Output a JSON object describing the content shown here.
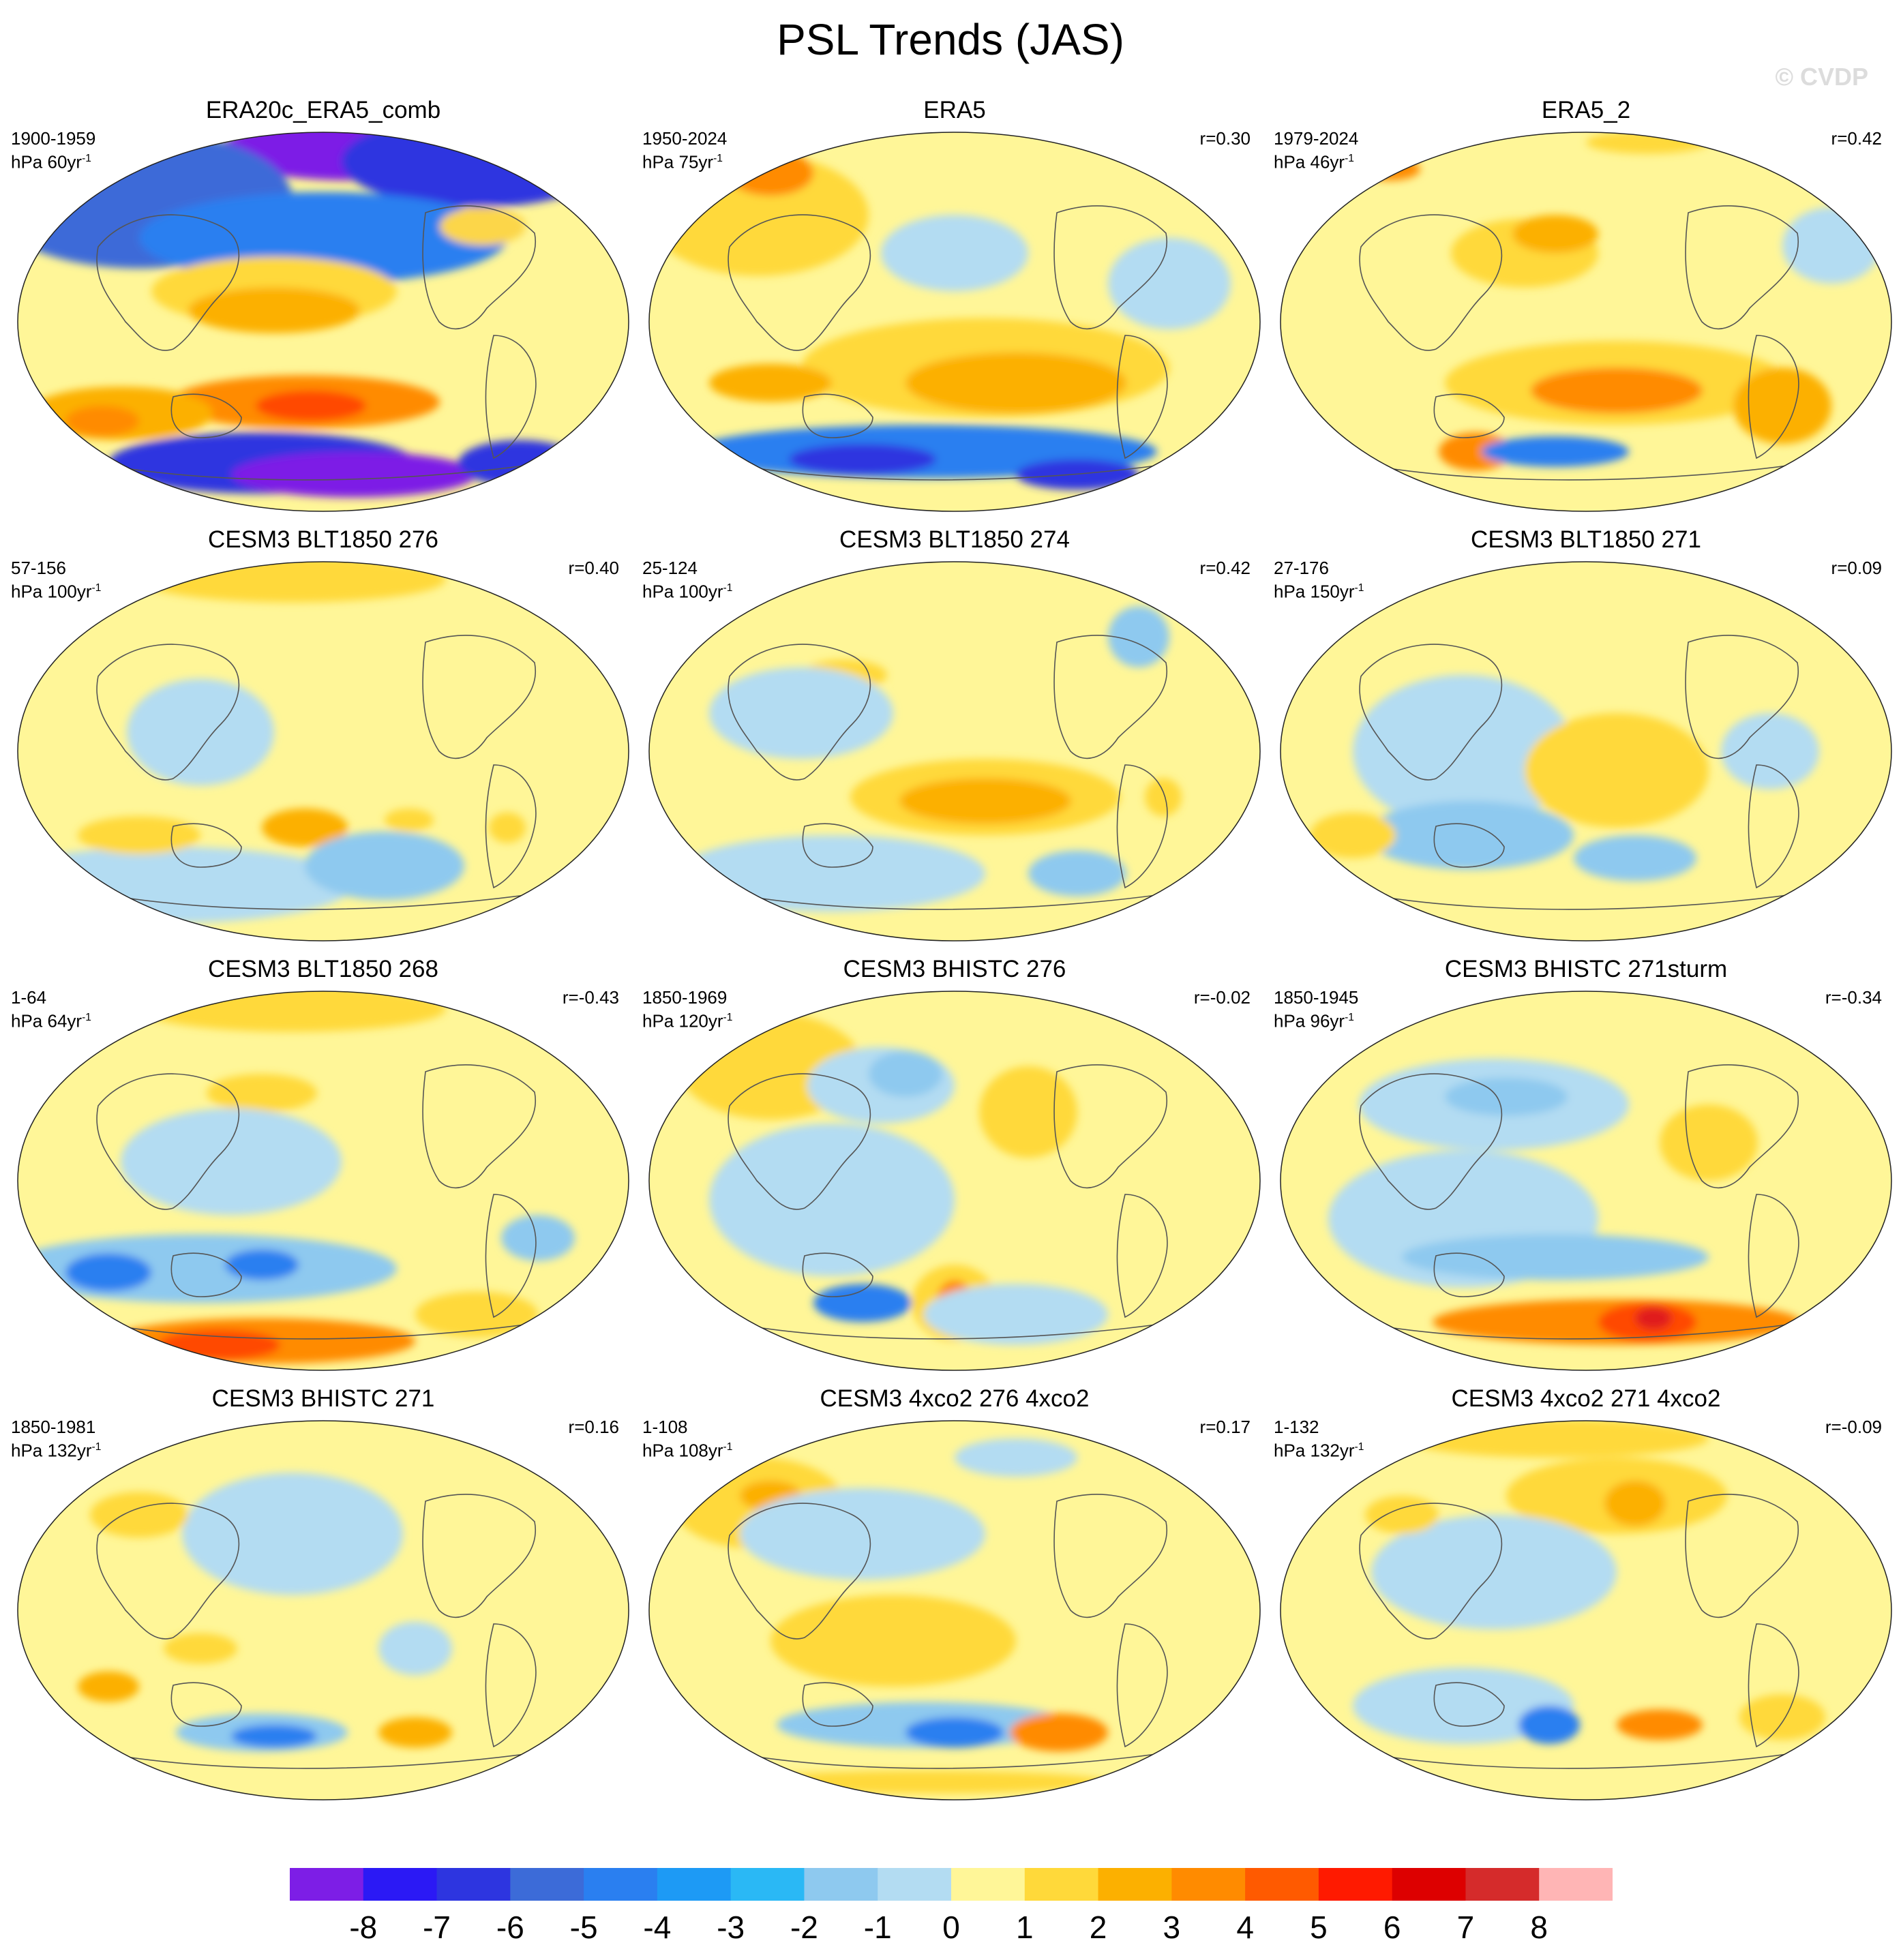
{
  "title": "PSL Trends (JAS)",
  "watermark": "© CVDP",
  "panels": [
    {
      "title": "ERA20c_ERA5_comb",
      "period": "1900-1959",
      "units": "hPa 60yr",
      "r": "",
      "blobs": [
        [
          "#7d1ee6",
          0.55,
          0.05,
          0.22,
          0.08
        ],
        [
          "#2d35e0",
          0.75,
          0.08,
          0.22,
          0.12
        ],
        [
          "#3c6bd8",
          0.2,
          0.18,
          0.25,
          0.18
        ],
        [
          "#2a7ff0",
          0.5,
          0.28,
          0.3,
          0.12
        ],
        [
          "#ffd93a",
          0.42,
          0.42,
          0.2,
          0.09
        ],
        [
          "#fcb000",
          0.42,
          0.47,
          0.14,
          0.06
        ],
        [
          "#ff8b00",
          0.47,
          0.71,
          0.22,
          0.07
        ],
        [
          "#ff4a00",
          0.48,
          0.72,
          0.09,
          0.04
        ],
        [
          "#fcb000",
          0.17,
          0.74,
          0.15,
          0.07
        ],
        [
          "#ff8b00",
          0.14,
          0.76,
          0.06,
          0.04
        ],
        [
          "#2d35e0",
          0.4,
          0.87,
          0.25,
          0.08
        ],
        [
          "#7d1ee6",
          0.55,
          0.9,
          0.2,
          0.06
        ],
        [
          "#2d35e0",
          0.82,
          0.87,
          0.1,
          0.06
        ],
        [
          "#fcd64a",
          0.76,
          0.25,
          0.07,
          0.05
        ]
      ]
    },
    {
      "title": "ERA5",
      "period": "1950-2024",
      "units": "hPa 75yr",
      "r": "r=0.30",
      "blobs": [
        [
          "#ffd93a",
          0.18,
          0.22,
          0.18,
          0.16
        ],
        [
          "#ff8b00",
          0.2,
          0.11,
          0.07,
          0.06
        ],
        [
          "#ffd93a",
          0.55,
          0.62,
          0.3,
          0.13
        ],
        [
          "#fcb000",
          0.6,
          0.66,
          0.18,
          0.08
        ],
        [
          "#fcb000",
          0.2,
          0.66,
          0.1,
          0.05
        ],
        [
          "#b3dcf2",
          0.5,
          0.32,
          0.12,
          0.1
        ],
        [
          "#2a7ff0",
          0.45,
          0.84,
          0.38,
          0.07
        ],
        [
          "#2d35e0",
          0.35,
          0.86,
          0.12,
          0.04
        ],
        [
          "#2d35e0",
          0.7,
          0.9,
          0.1,
          0.04
        ],
        [
          "#b3dcf2",
          0.85,
          0.4,
          0.1,
          0.12
        ]
      ]
    },
    {
      "title": "ERA5_2",
      "period": "1979-2024",
      "units": "hPa 46yr",
      "r": "r=0.42",
      "blobs": [
        [
          "#ffd93a",
          0.4,
          0.32,
          0.12,
          0.09
        ],
        [
          "#fcb000",
          0.45,
          0.27,
          0.07,
          0.05
        ],
        [
          "#ffd93a",
          0.55,
          0.66,
          0.28,
          0.11
        ],
        [
          "#ff8b00",
          0.55,
          0.68,
          0.14,
          0.06
        ],
        [
          "#ff8b00",
          0.32,
          0.84,
          0.06,
          0.05
        ],
        [
          "#2a7ff0",
          0.45,
          0.84,
          0.12,
          0.04
        ],
        [
          "#fcb000",
          0.82,
          0.72,
          0.08,
          0.1
        ],
        [
          "#b3dcf2",
          0.9,
          0.3,
          0.08,
          0.1
        ],
        [
          "#ff8b00",
          0.18,
          0.1,
          0.05,
          0.03
        ],
        [
          "#ffd93a",
          0.6,
          0.03,
          0.1,
          0.03
        ]
      ]
    },
    {
      "title": "CESM3 BLT1850 276",
      "period": "57-156",
      "units": "hPa 100yr",
      "r": "r=0.40",
      "blobs": [
        [
          "#ffd93a",
          0.45,
          0.05,
          0.25,
          0.06
        ],
        [
          "#b3dcf2",
          0.3,
          0.45,
          0.12,
          0.14
        ],
        [
          "#b3dcf2",
          0.25,
          0.85,
          0.3,
          0.1
        ],
        [
          "#ffd93a",
          0.2,
          0.72,
          0.1,
          0.05
        ],
        [
          "#fcb000",
          0.47,
          0.7,
          0.07,
          0.05
        ],
        [
          "#ffd93a",
          0.64,
          0.68,
          0.04,
          0.03
        ],
        [
          "#2a7ff0",
          0.62,
          0.82,
          0.08,
          0.06
        ],
        [
          "#8ec9ef",
          0.6,
          0.8,
          0.13,
          0.09
        ],
        [
          "#ffd93a",
          0.8,
          0.7,
          0.03,
          0.04
        ]
      ]
    },
    {
      "title": "CESM3 BLT1850 274",
      "period": "25-124",
      "units": "hPa 100yr",
      "r": "r=0.42",
      "blobs": [
        [
          "#ffd93a",
          0.32,
          0.3,
          0.07,
          0.04
        ],
        [
          "#b3dcf2",
          0.25,
          0.4,
          0.15,
          0.12
        ],
        [
          "#ffd93a",
          0.55,
          0.62,
          0.22,
          0.1
        ],
        [
          "#fcb000",
          0.55,
          0.63,
          0.14,
          0.06
        ],
        [
          "#b3dcf2",
          0.3,
          0.82,
          0.25,
          0.1
        ],
        [
          "#8ec9ef",
          0.7,
          0.82,
          0.08,
          0.06
        ],
        [
          "#8ec9ef",
          0.8,
          0.2,
          0.05,
          0.08
        ],
        [
          "#ffd93a",
          0.84,
          0.62,
          0.03,
          0.05
        ]
      ]
    },
    {
      "title": "CESM3 BLT1850 271",
      "period": "27-176",
      "units": "hPa 150yr",
      "r": "r=0.09",
      "blobs": [
        [
          "#b3dcf2",
          0.3,
          0.5,
          0.18,
          0.2
        ],
        [
          "#2a7ff0",
          0.3,
          0.73,
          0.1,
          0.05
        ],
        [
          "#8ec9ef",
          0.31,
          0.72,
          0.17,
          0.09
        ],
        [
          "#8ec9ef",
          0.58,
          0.78,
          0.1,
          0.06
        ],
        [
          "#ffd93a",
          0.55,
          0.55,
          0.15,
          0.15
        ],
        [
          "#ffd93a",
          0.12,
          0.72,
          0.07,
          0.06
        ],
        [
          "#ffd93a",
          0.57,
          0.65,
          0.05,
          0.03
        ],
        [
          "#b3dcf2",
          0.8,
          0.5,
          0.08,
          0.1
        ]
      ]
    },
    {
      "title": "CESM3 BLT1850 268",
      "period": "1-64",
      "units": "hPa 64yr",
      "r": "r=-0.43",
      "blobs": [
        [
          "#ffd93a",
          0.45,
          0.05,
          0.25,
          0.06
        ],
        [
          "#ffd93a",
          0.4,
          0.27,
          0.09,
          0.05
        ],
        [
          "#b3dcf2",
          0.35,
          0.45,
          0.18,
          0.14
        ],
        [
          "#8ec9ef",
          0.3,
          0.73,
          0.32,
          0.09
        ],
        [
          "#2a7ff0",
          0.15,
          0.74,
          0.07,
          0.05
        ],
        [
          "#2a7ff0",
          0.4,
          0.72,
          0.06,
          0.04
        ],
        [
          "#ff8b00",
          0.4,
          0.92,
          0.25,
          0.06
        ],
        [
          "#ff4a00",
          0.33,
          0.93,
          0.1,
          0.04
        ],
        [
          "#ffd93a",
          0.75,
          0.85,
          0.1,
          0.06
        ],
        [
          "#8ec9ef",
          0.85,
          0.65,
          0.06,
          0.06
        ]
      ]
    },
    {
      "title": "CESM3 BHISTC 276",
      "period": "1850-1969",
      "units": "hPa 120yr",
      "r": "r=-0.02",
      "blobs": [
        [
          "#ffd93a",
          0.2,
          0.2,
          0.15,
          0.14
        ],
        [
          "#b3dcf2",
          0.38,
          0.25,
          0.12,
          0.1
        ],
        [
          "#8ec9ef",
          0.42,
          0.22,
          0.06,
          0.06
        ],
        [
          "#b3dcf2",
          0.3,
          0.55,
          0.2,
          0.2
        ],
        [
          "#2a7ff0",
          0.35,
          0.82,
          0.08,
          0.05
        ],
        [
          "#ffd93a",
          0.5,
          0.82,
          0.07,
          0.1
        ],
        [
          "#ff8b00",
          0.5,
          0.82,
          0.03,
          0.06
        ],
        [
          "#2a7ff0",
          0.63,
          0.85,
          0.08,
          0.05
        ],
        [
          "#b3dcf2",
          0.6,
          0.85,
          0.15,
          0.08
        ],
        [
          "#ffd93a",
          0.62,
          0.32,
          0.08,
          0.12
        ]
      ]
    },
    {
      "title": "CESM3 BHISTC 271sturm",
      "period": "1850-1945",
      "units": "hPa 96yr",
      "r": "r=-0.34",
      "blobs": [
        [
          "#b3dcf2",
          0.35,
          0.3,
          0.22,
          0.12
        ],
        [
          "#8ec9ef",
          0.37,
          0.28,
          0.1,
          0.05
        ],
        [
          "#b3dcf2",
          0.3,
          0.6,
          0.22,
          0.18
        ],
        [
          "#8ec9ef",
          0.45,
          0.7,
          0.25,
          0.06
        ],
        [
          "#ff8b00",
          0.55,
          0.87,
          0.3,
          0.06
        ],
        [
          "#ff4a00",
          0.6,
          0.87,
          0.08,
          0.05
        ],
        [
          "#e01a1a",
          0.61,
          0.86,
          0.03,
          0.03
        ],
        [
          "#ffd93a",
          0.7,
          0.4,
          0.08,
          0.1
        ]
      ]
    },
    {
      "title": "CESM3 BHISTC 271",
      "period": "1850-1981",
      "units": "hPa 132yr",
      "r": "r=0.16",
      "blobs": [
        [
          "#b3dcf2",
          0.45,
          0.3,
          0.18,
          0.16
        ],
        [
          "#ffd93a",
          0.2,
          0.25,
          0.08,
          0.06
        ],
        [
          "#ffd93a",
          0.3,
          0.6,
          0.06,
          0.04
        ],
        [
          "#fcb000",
          0.15,
          0.7,
          0.05,
          0.04
        ],
        [
          "#8ec9ef",
          0.4,
          0.82,
          0.14,
          0.05
        ],
        [
          "#2a7ff0",
          0.42,
          0.83,
          0.07,
          0.03
        ],
        [
          "#fcb000",
          0.65,
          0.82,
          0.06,
          0.04
        ],
        [
          "#b3dcf2",
          0.65,
          0.6,
          0.06,
          0.07
        ]
      ]
    },
    {
      "title": "CESM3 4xco2 276 4xco2",
      "period": "1-108",
      "units": "hPa 108yr",
      "r": "r=0.17",
      "blobs": [
        [
          "#ffd93a",
          0.18,
          0.22,
          0.14,
          0.12
        ],
        [
          "#fcb000",
          0.2,
          0.2,
          0.05,
          0.04
        ],
        [
          "#b3dcf2",
          0.35,
          0.3,
          0.2,
          0.12
        ],
        [
          "#ffd93a",
          0.4,
          0.58,
          0.2,
          0.12
        ],
        [
          "#ffd93a",
          0.38,
          0.55,
          0.12,
          0.06
        ],
        [
          "#8ec9ef",
          0.45,
          0.8,
          0.24,
          0.06
        ],
        [
          "#2a7ff0",
          0.5,
          0.82,
          0.08,
          0.04
        ],
        [
          "#ff8b00",
          0.67,
          0.82,
          0.08,
          0.05
        ],
        [
          "#ffd93a",
          0.45,
          0.95,
          0.3,
          0.03
        ],
        [
          "#b3dcf2",
          0.6,
          0.1,
          0.1,
          0.05
        ]
      ]
    },
    {
      "title": "CESM3 4xco2 271 4xco2",
      "period": "1-132",
      "units": "hPa 132yr",
      "r": "r=-0.09",
      "blobs": [
        [
          "#ffd93a",
          0.45,
          0.05,
          0.25,
          0.05
        ],
        [
          "#ffd93a",
          0.55,
          0.2,
          0.18,
          0.1
        ],
        [
          "#fcb000",
          0.58,
          0.22,
          0.05,
          0.06
        ],
        [
          "#b3dcf2",
          0.35,
          0.4,
          0.2,
          0.15
        ],
        [
          "#b3dcf2",
          0.3,
          0.75,
          0.18,
          0.1
        ],
        [
          "#2a7ff0",
          0.44,
          0.8,
          0.05,
          0.05
        ],
        [
          "#ff8b00",
          0.62,
          0.8,
          0.07,
          0.04
        ],
        [
          "#ffd93a",
          0.82,
          0.78,
          0.07,
          0.06
        ],
        [
          "#ffd93a",
          0.2,
          0.25,
          0.06,
          0.05
        ]
      ]
    }
  ],
  "colorbar": {
    "colors": [
      "#7d1ee6",
      "#2b19f5",
      "#2d35e0",
      "#3c6bd8",
      "#2a7ff0",
      "#1d9af5",
      "#2ab8f5",
      "#8ec9ef",
      "#b3dcf2",
      "#fff698",
      "#ffd93a",
      "#fcb000",
      "#ff8b00",
      "#ff5a00",
      "#ff1a00",
      "#dd0000",
      "#d52b2b",
      "#ffb5b5"
    ],
    "labels": [
      "-8",
      "-7",
      "-6",
      "-5",
      "-4",
      "-3",
      "-2",
      "-1",
      "0",
      "1",
      "2",
      "3",
      "4",
      "5",
      "6",
      "7",
      "8"
    ]
  }
}
